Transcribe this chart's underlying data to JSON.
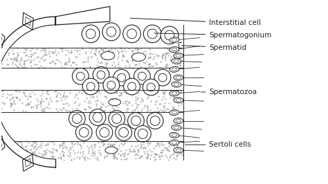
{
  "labels": {
    "interstitial_cell": "Interstitial cell",
    "spermatogonium": "Spermatogonium",
    "spermatid": "Spermatid",
    "spermatozoa": "Spermatozoa",
    "sertoli_cells": "Sertoli cells"
  },
  "line_color": "#222222",
  "bg_color": "#ffffff",
  "font_size": 7.5,
  "fig_width": 4.74,
  "fig_height": 2.66,
  "dpi": 100
}
